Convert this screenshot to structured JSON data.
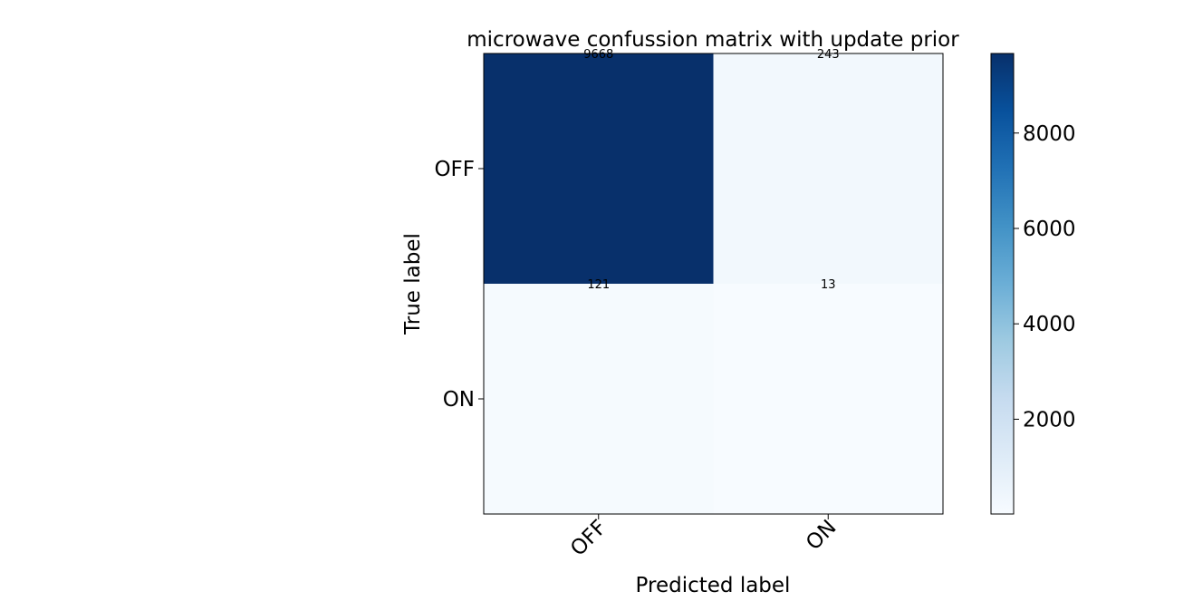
{
  "chart_data": {
    "type": "heatmap",
    "title": "microwave confussion matrix with update prior",
    "xlabel": "Predicted label",
    "ylabel": "True label",
    "x_categories": [
      "OFF",
      "ON"
    ],
    "y_categories": [
      "OFF",
      "ON"
    ],
    "matrix": [
      [
        9668,
        243
      ],
      [
        121,
        13
      ]
    ],
    "colormap": "Blues",
    "colorbar": {
      "min": 13,
      "max": 9668,
      "ticks": [
        2000,
        4000,
        6000,
        8000
      ]
    },
    "grid": false
  }
}
